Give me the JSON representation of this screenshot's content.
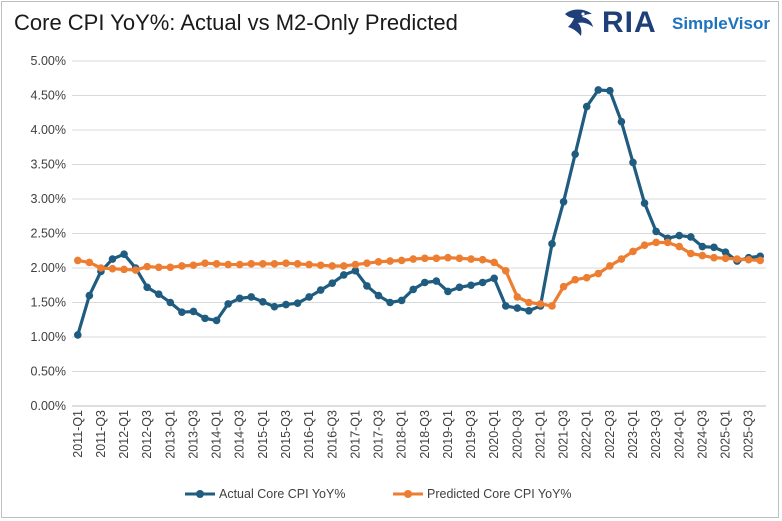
{
  "logo": {
    "brand": "RIA",
    "sub": "SimpleVisor",
    "icon": "eagle-head-icon"
  },
  "chart_data": {
    "type": "line",
    "title": "Core CPI YoY%: Actual vs M2-Only Predicted",
    "xlabel": "",
    "ylabel": "",
    "ylim": [
      0,
      5.0
    ],
    "yticks": [
      "0.00%",
      "0.50%",
      "1.00%",
      "1.50%",
      "2.00%",
      "2.50%",
      "3.00%",
      "3.50%",
      "4.00%",
      "4.50%",
      "5.00%"
    ],
    "grid": true,
    "legend": "bottom",
    "x": [
      "2011-Q1",
      "2011-Q2",
      "2011-Q3",
      "2011-Q4",
      "2012-Q1",
      "2012-Q2",
      "2012-Q3",
      "2012-Q4",
      "2013-Q1",
      "2013-Q2",
      "2013-Q3",
      "2013-Q4",
      "2014-Q1",
      "2014-Q2",
      "2014-Q3",
      "2014-Q4",
      "2015-Q1",
      "2015-Q2",
      "2015-Q3",
      "2015-Q4",
      "2016-Q1",
      "2016-Q2",
      "2016-Q3",
      "2016-Q4",
      "2017-Q1",
      "2017-Q2",
      "2017-Q3",
      "2017-Q4",
      "2018-Q1",
      "2018-Q2",
      "2018-Q3",
      "2018-Q4",
      "2019-Q1",
      "2019-Q2",
      "2019-Q3",
      "2019-Q4",
      "2020-Q1",
      "2020-Q2",
      "2020-Q3",
      "2020-Q4",
      "2021-Q1",
      "2021-Q2",
      "2021-Q3",
      "2021-Q4",
      "2022-Q1",
      "2022-Q2",
      "2022-Q3",
      "2022-Q4",
      "2023-Q1",
      "2023-Q2",
      "2023-Q3",
      "2023-Q4",
      "2024-Q1",
      "2024-Q2",
      "2024-Q3",
      "2024-Q4",
      "2025-Q1",
      "2025-Q2",
      "2025-Q3",
      "2025-Q4"
    ],
    "xticks_shown": [
      "2011-Q1",
      "2011-Q3",
      "2012-Q1",
      "2012-Q3",
      "2013-Q1",
      "2013-Q3",
      "2014-Q1",
      "2014-Q3",
      "2015-Q1",
      "2015-Q3",
      "2016-Q1",
      "2016-Q3",
      "2017-Q1",
      "2017-Q3",
      "2018-Q1",
      "2018-Q3",
      "2019-Q1",
      "2019-Q3",
      "2020-Q1",
      "2020-Q3",
      "2021-Q1",
      "2021-Q3",
      "2022-Q1",
      "2022-Q3",
      "2023-Q1",
      "2023-Q3",
      "2024-Q1",
      "2024-Q3",
      "2025-Q1",
      "2025-Q3"
    ],
    "series": [
      {
        "name": "Actual Core CPI YoY%",
        "color": "#1f5c80",
        "values": [
          1.03,
          1.6,
          1.95,
          2.13,
          2.2,
          2.0,
          1.72,
          1.62,
          1.5,
          1.36,
          1.37,
          1.27,
          1.24,
          1.48,
          1.56,
          1.58,
          1.51,
          1.44,
          1.47,
          1.49,
          1.58,
          1.68,
          1.78,
          1.9,
          1.96,
          1.74,
          1.6,
          1.5,
          1.53,
          1.69,
          1.79,
          1.81,
          1.66,
          1.72,
          1.75,
          1.79,
          1.85,
          1.45,
          1.42,
          1.38,
          1.45,
          2.35,
          2.96,
          3.65,
          4.34,
          4.58,
          4.57,
          4.12,
          3.53,
          2.94,
          2.53,
          2.43,
          2.47,
          2.45,
          2.31,
          2.3,
          2.23,
          2.1,
          2.15,
          2.17
        ]
      },
      {
        "name": "Predicted Core CPI YoY%",
        "color": "#ed7d31",
        "values": [
          2.11,
          2.08,
          2.0,
          1.99,
          1.98,
          1.97,
          2.02,
          2.01,
          2.01,
          2.03,
          2.04,
          2.07,
          2.06,
          2.05,
          2.05,
          2.06,
          2.06,
          2.06,
          2.07,
          2.06,
          2.05,
          2.04,
          2.03,
          2.03,
          2.05,
          2.07,
          2.09,
          2.1,
          2.11,
          2.13,
          2.14,
          2.14,
          2.15,
          2.14,
          2.13,
          2.12,
          2.08,
          1.96,
          1.58,
          1.5,
          1.48,
          1.45,
          1.73,
          1.83,
          1.86,
          1.92,
          2.03,
          2.13,
          2.24,
          2.33,
          2.37,
          2.37,
          2.31,
          2.21,
          2.18,
          2.15,
          2.14,
          2.13,
          2.12,
          2.11
        ]
      }
    ]
  }
}
